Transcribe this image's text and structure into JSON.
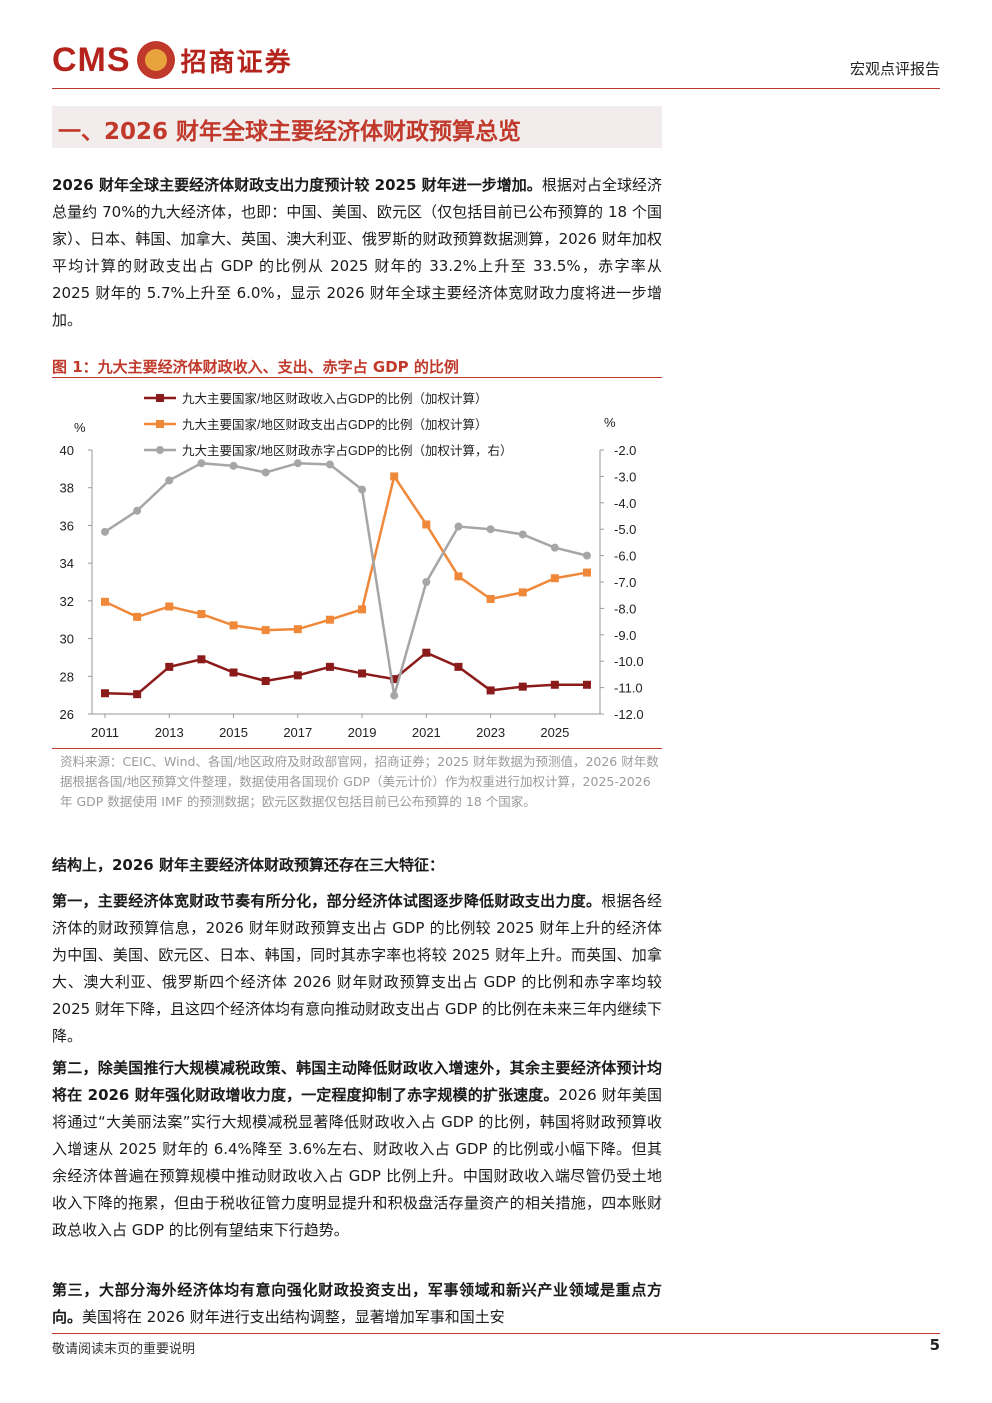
{
  "header": {
    "logo_text": "CMS",
    "logo_cn": "招商证券",
    "report_type": "宏观点评报告"
  },
  "section_title": "一、2026 财年全球主要经济体财政预算总览",
  "intro": {
    "bold": "2026 财年全球主要经济体财政支出力度预计较 2025 财年进一步增加。",
    "text": "根据对占全球经济总量约 70%的九大经济体，也即：中国、美国、欧元区（仅包括目前已公布预算的 18 个国家）、日本、韩国、加拿大、英国、澳大利亚、俄罗斯的财政预算数据测算，2026 财年加权平均计算的财政支出占 GDP 的比例从 2025 财年的 33.2%上升至 33.5%，赤字率从 2025 财年的 5.7%上升至 6.0%，显示 2026 财年全球主要经济体宽财政力度将进一步增加。"
  },
  "figure": {
    "title": "图 1：九大主要经济体财政收入、支出、赤字占 GDP 的比例",
    "source": "资料来源：CEIC、Wind、各国/地区政府及财政部官网，招商证券；2025 财年数据为预测值，2026 财年数据根据各国/地区预算文件整理，数据使用各国现价 GDP（美元计价）作为权重进行加权计算，2025-2026 年 GDP 数据使用 IMF 的预测数据；欧元区数据仅包括目前已公布预算的 18 个国家。"
  },
  "chart_data": {
    "type": "line",
    "x": [
      2011,
      2012,
      2013,
      2014,
      2015,
      2016,
      2017,
      2018,
      2019,
      2020,
      2021,
      2022,
      2023,
      2024,
      2025,
      2026
    ],
    "x_tick_labels": [
      "2011",
      "2013",
      "2015",
      "2017",
      "2019",
      "2021",
      "2023",
      "2025"
    ],
    "y_left": {
      "label": "%",
      "lim": [
        26,
        40
      ],
      "ticks": [
        "26",
        "28",
        "30",
        "32",
        "34",
        "36",
        "38",
        "40"
      ]
    },
    "y_right": {
      "label": "%",
      "lim": [
        -12,
        -2
      ],
      "ticks": [
        "-12.0",
        "-11.0",
        "-10.0",
        "-9.0",
        "-8.0",
        "-7.0",
        "-6.0",
        "-5.0",
        "-4.0",
        "-3.0",
        "-2.0"
      ]
    },
    "legend_position": "top",
    "grid": false,
    "series": [
      {
        "name": "九大主要国家/地区财政收入占GDP的比例（加权计算）",
        "axis": "left",
        "color": "#8b1a1a",
        "marker": "square",
        "values": [
          27.1,
          27.05,
          28.5,
          28.9,
          28.2,
          27.75,
          28.05,
          28.5,
          28.15,
          27.85,
          29.25,
          28.5,
          27.25,
          27.45,
          27.55,
          27.55
        ]
      },
      {
        "name": "九大主要国家/地区财政支出占GDP的比例（加权计算）",
        "axis": "left",
        "color": "#f0883a",
        "marker": "square",
        "values": [
          31.95,
          31.15,
          31.7,
          31.3,
          30.7,
          30.45,
          30.5,
          31.0,
          31.55,
          38.6,
          36.05,
          33.3,
          32.1,
          32.45,
          33.2,
          33.5
        ]
      },
      {
        "name": "九大主要国家/地区财政赤字占GDP的比例（加权计算，右）",
        "axis": "right",
        "color": "#a6a6a6",
        "marker": "circle",
        "values": [
          -5.1,
          -4.3,
          -3.15,
          -2.5,
          -2.6,
          -2.85,
          -2.5,
          -2.55,
          -3.5,
          -11.3,
          -7.0,
          -4.9,
          -5.0,
          -5.2,
          -5.7,
          -6.0
        ]
      }
    ]
  },
  "structure_intro": "结构上，2026 财年主要经济体财政预算还存在三大特征：",
  "point1": {
    "bold": "第一，主要经济体宽财政节奏有所分化，部分经济体试图逐步降低财政支出力度。",
    "text": "根据各经济体的财政预算信息，2026 财年财政预算支出占 GDP 的比例较 2025 财年上升的经济体为中国、美国、欧元区、日本、韩国，同时其赤字率也将较 2025 财年上升。而英国、加拿大、澳大利亚、俄罗斯四个经济体 2026 财年财政预算支出占 GDP 的比例和赤字率均较 2025 财年下降，且这四个经济体均有意向推动财政支出占 GDP 的比例在未来三年内继续下降。"
  },
  "point2": {
    "bold": "第二，除美国推行大规模减税政策、韩国主动降低财政收入增速外，其余主要经济体预计均将在 2026 财年强化财政增收力度，一定程度抑制了赤字规模的扩张速度。",
    "text": "2026 财年美国将通过“大美丽法案”实行大规模减税显著降低财政收入占 GDP 的比例，韩国将财政预算收入增速从 2025 财年的 6.4%降至 3.6%左右、财政收入占 GDP 的比例或小幅下降。但其余经济体普遍在预算规模中推动财政收入占 GDP 比例上升。中国财政收入端尽管仍受土地收入下降的拖累，但由于税收征管力度明显提升和积极盘活存量资产的相关措施，四本账财政总收入占 GDP 的比例有望结束下行趋势。"
  },
  "point3": {
    "bold": "第三，大部分海外经济体均有意向强化财政投资支出，军事领域和新兴产业领域是重点方向。",
    "text": "美国将在 2026 财年进行支出结构调整，显著增加军事和国土安"
  },
  "footer": {
    "left": "敬请阅读末页的重要说明",
    "page": "5"
  }
}
